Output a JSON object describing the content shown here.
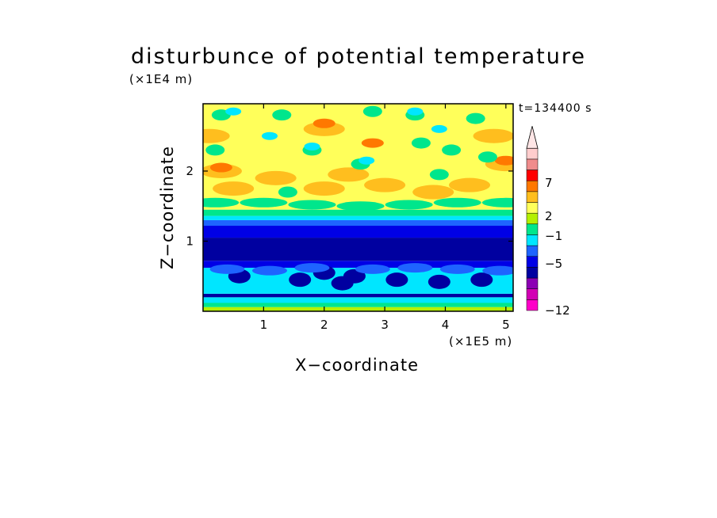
{
  "chart_data": {
    "type": "heatmap",
    "title": "disturbunce of potential temperature",
    "xlabel": "X−coordinate",
    "ylabel": "Z−coordinate",
    "x_unit_label": "(×1E5 m)",
    "y_unit_label": "(×1E4 m)",
    "time_label": "t=134400 s",
    "xlim": [
      0,
      5.12
    ],
    "ylim": [
      0,
      2.96
    ],
    "x_ticks": [
      1,
      2,
      3,
      4,
      5
    ],
    "y_ticks": [
      1,
      2
    ],
    "colorbar": {
      "tick_labels": [
        "7",
        "2",
        "−1",
        "−5",
        "−12"
      ],
      "tick_values": [
        7,
        2,
        -1,
        -5,
        -12
      ],
      "extend": "max",
      "levels": [
        {
          "color": "#ff00c8"
        },
        {
          "color": "#d200b4"
        },
        {
          "color": "#8c00b4"
        },
        {
          "color": "#0000a0"
        },
        {
          "color": "#0000e6"
        },
        {
          "color": "#1e64ff"
        },
        {
          "color": "#00e6ff"
        },
        {
          "color": "#00e68c"
        },
        {
          "color": "#b4f000"
        },
        {
          "color": "#ffff5a"
        },
        {
          "color": "#ffbe1e"
        },
        {
          "color": "#ff7800"
        },
        {
          "color": "#ff0000"
        },
        {
          "color": "#f08c8c"
        },
        {
          "color": "#ffcdcd"
        }
      ],
      "extend_color": "#ffe6e6"
    },
    "bands": [
      {
        "z": [
          0.0,
          0.06
        ],
        "level": "green/yellow mix"
      },
      {
        "z": [
          0.06,
          0.2
        ],
        "level": "cyan and green"
      },
      {
        "z": [
          0.2,
          0.26
        ],
        "level": "dark blue line"
      },
      {
        "z": [
          0.26,
          0.62
        ],
        "level": "cyan / light blue"
      },
      {
        "z": [
          0.62,
          1.2
        ],
        "level": "dark blue / navy"
      },
      {
        "z": [
          1.2,
          1.45
        ],
        "level": "blue, cyan, green transition"
      },
      {
        "z": [
          1.45,
          2.96
        ],
        "level": "yellow with orange and green cells"
      }
    ]
  }
}
